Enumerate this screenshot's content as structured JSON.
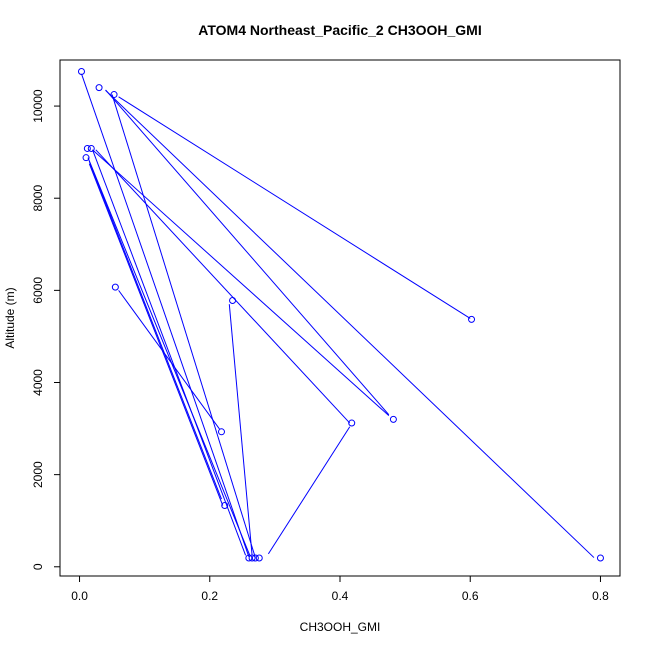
{
  "chart_data": {
    "type": "scatter",
    "title": "ATOM4 Northeast_Pacific_2 CH3OOH_GMI",
    "xlabel": "CH3OOH_GMI",
    "ylabel": "Altitude (m)",
    "xlim": [
      -0.03,
      0.83
    ],
    "ylim": [
      -200,
      11000
    ],
    "xticks": [
      0.0,
      0.2,
      0.4,
      0.6,
      0.8
    ],
    "xtick_labels": [
      "0.0",
      "0.2",
      "0.4",
      "0.6",
      "0.8"
    ],
    "yticks": [
      0,
      2000,
      4000,
      6000,
      8000,
      10000
    ],
    "ytick_labels": [
      "0",
      "2000",
      "4000",
      "6000",
      "8000",
      "10000"
    ],
    "grid": false,
    "color": "#0000ff",
    "markers": [
      {
        "x": 0.003,
        "y": 10750
      },
      {
        "x": 0.03,
        "y": 10400
      },
      {
        "x": 0.053,
        "y": 10250
      },
      {
        "x": 0.012,
        "y": 9080
      },
      {
        "x": 0.018,
        "y": 9080
      },
      {
        "x": 0.01,
        "y": 8880
      },
      {
        "x": 0.055,
        "y": 6070
      },
      {
        "x": 0.235,
        "y": 5780
      },
      {
        "x": 0.602,
        "y": 5370
      },
      {
        "x": 0.482,
        "y": 3200
      },
      {
        "x": 0.418,
        "y": 3120
      },
      {
        "x": 0.218,
        "y": 2930
      },
      {
        "x": 0.223,
        "y": 1330
      },
      {
        "x": 0.26,
        "y": 190
      },
      {
        "x": 0.265,
        "y": 190
      },
      {
        "x": 0.27,
        "y": 190
      },
      {
        "x": 0.276,
        "y": 190
      },
      {
        "x": 0.8,
        "y": 190
      }
    ],
    "path": [
      [
        0.003,
        10700
      ],
      [
        0.26,
        220
      ],
      [
        0.04,
        10350
      ],
      [
        0.475,
        3300
      ],
      [
        0.05,
        10250
      ],
      [
        0.27,
        200
      ],
      [
        0.06,
        10200
      ],
      [
        0.6,
        5390
      ],
      [
        0.02,
        9050
      ],
      [
        0.475,
        3280
      ],
      [
        0.025,
        9050
      ],
      [
        0.415,
        3120
      ],
      [
        0.02,
        9050
      ],
      [
        0.255,
        250
      ],
      [
        0.015,
        8800
      ],
      [
        0.218,
        1470
      ],
      [
        0.015,
        8750
      ],
      [
        0.22,
        1330
      ],
      [
        0.06,
        6000
      ],
      [
        0.215,
        2990
      ],
      [
        0.23,
        5700
      ],
      [
        0.265,
        250
      ],
      [
        0.29,
        280
      ],
      [
        0.415,
        3040
      ],
      [
        0.04,
        10340
      ],
      [
        0.79,
        200
      ],
      [
        0.013,
        8880
      ],
      [
        0.262,
        230
      ]
    ]
  }
}
